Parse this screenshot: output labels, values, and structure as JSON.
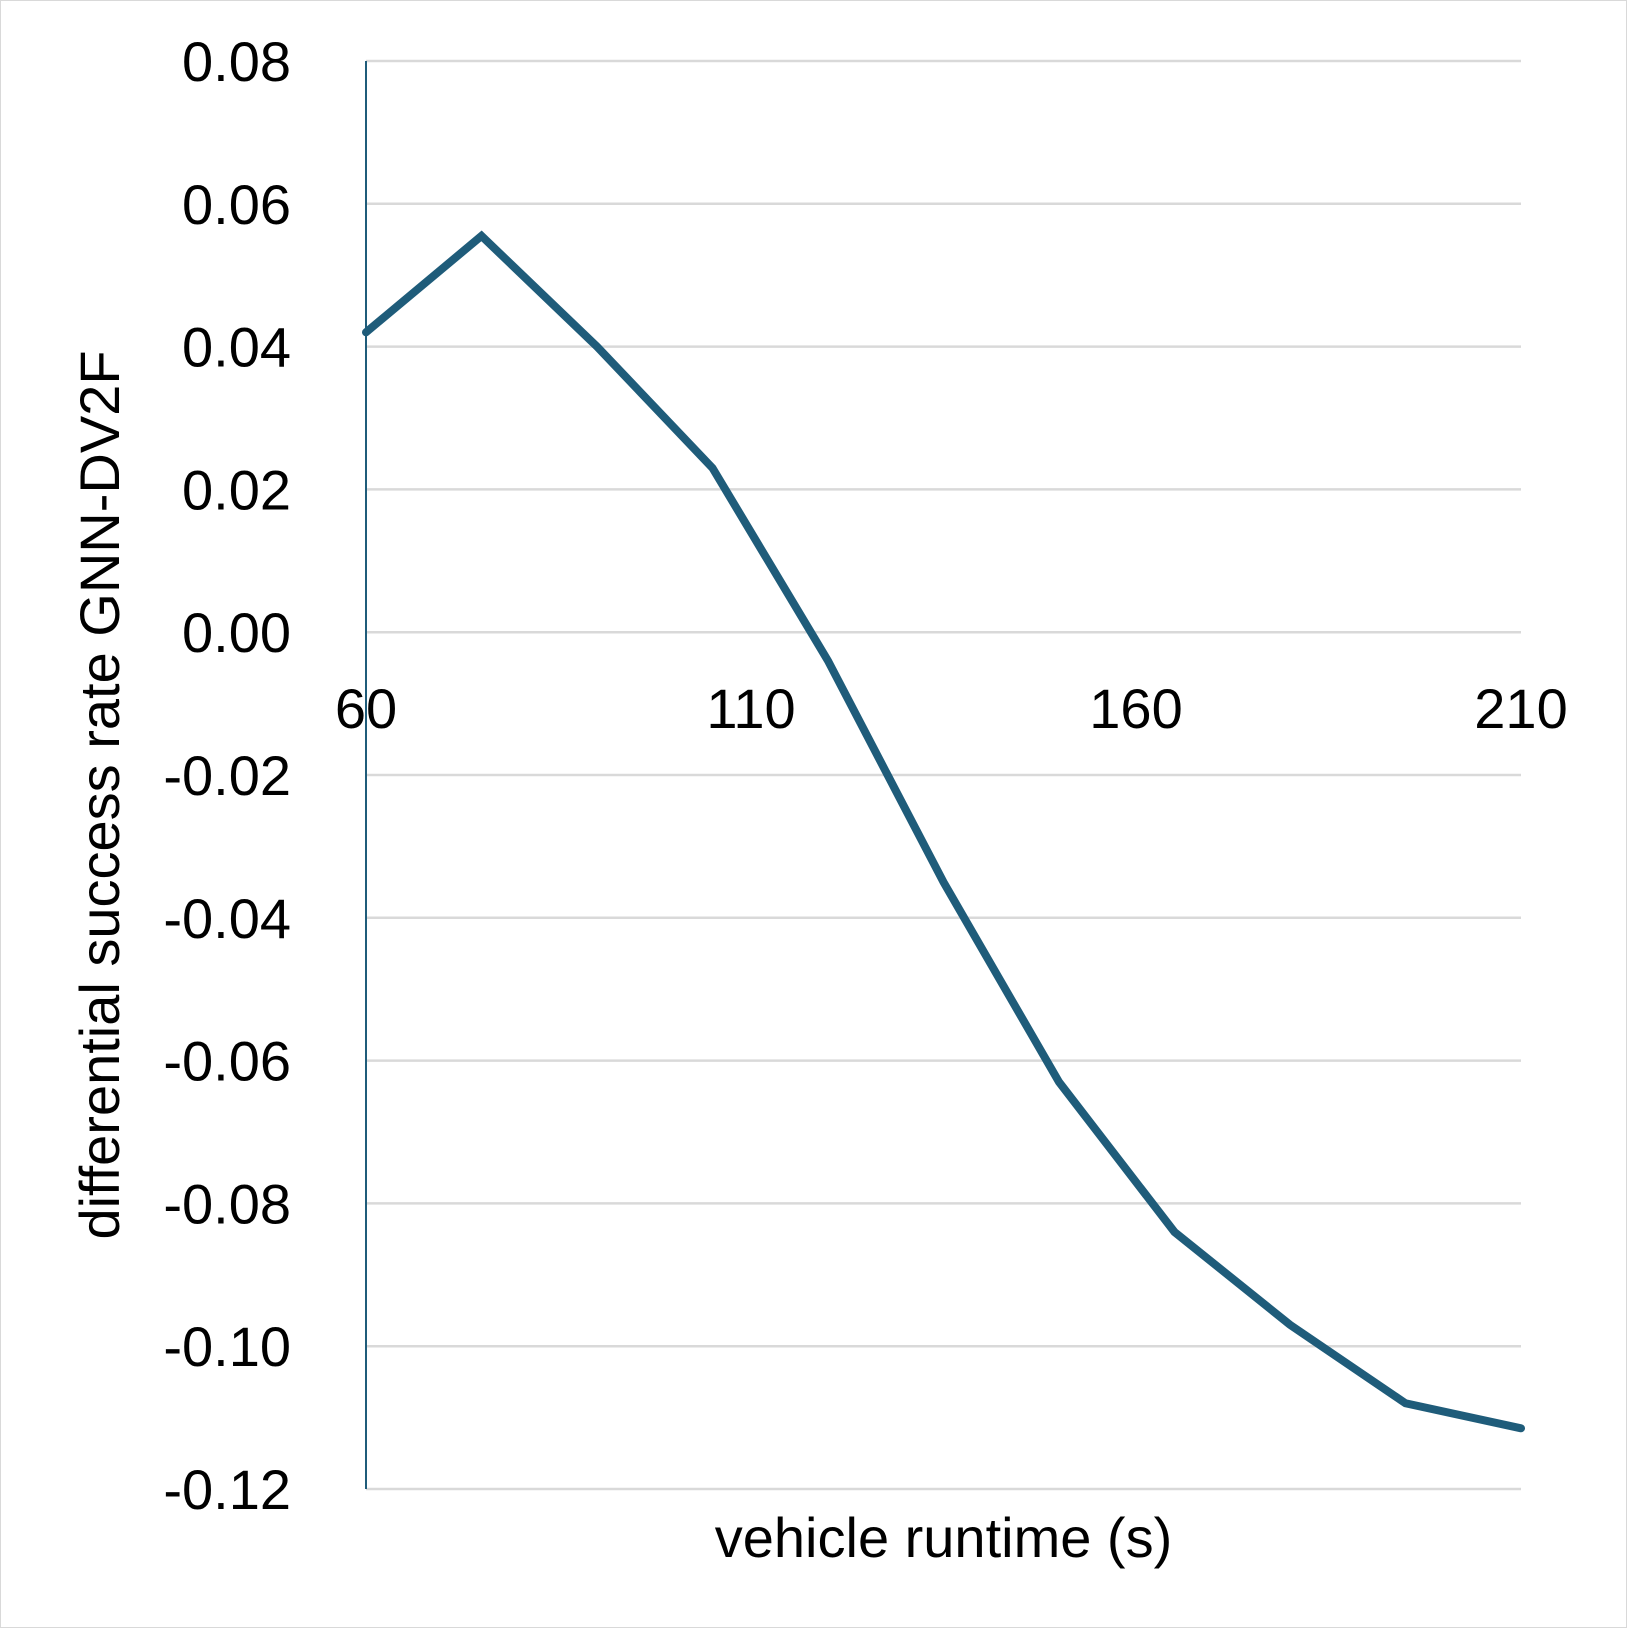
{
  "chart_data": {
    "type": "line",
    "title": "",
    "xlabel": "vehicle runtime (s)",
    "ylabel": "differential success rate GNN-DV2F",
    "xlim": [
      60,
      210
    ],
    "ylim": [
      -0.12,
      0.08
    ],
    "x_ticks": [
      "60",
      "110",
      "160",
      "210"
    ],
    "x_tick_values": [
      60,
      110,
      160,
      210
    ],
    "y_ticks": [
      "0.08",
      "0.06",
      "0.04",
      "0.02",
      "0.00",
      "-0.02",
      "-0.04",
      "-0.06",
      "-0.08",
      "-0.10",
      "-0.12"
    ],
    "y_tick_values": [
      0.08,
      0.06,
      0.04,
      0.02,
      0.0,
      -0.02,
      -0.04,
      -0.06,
      -0.08,
      -0.1,
      -0.12
    ],
    "grid": true,
    "legend": "none",
    "line_color": "#1f5c7a",
    "series": [
      {
        "x": [
          60,
          75,
          90,
          105,
          120,
          135,
          150,
          165,
          180,
          195,
          210
        ],
        "values": [
          0.042,
          0.0555,
          0.04,
          0.023,
          -0.004,
          -0.035,
          -0.063,
          -0.084,
          -0.097,
          -0.108,
          -0.1115
        ]
      }
    ]
  }
}
